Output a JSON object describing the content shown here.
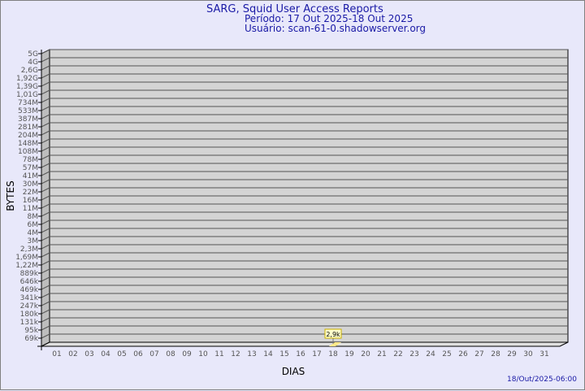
{
  "title": "SARG, Squid User Access Reports",
  "period": "Período: 17 Out 2025-18 Out 2025",
  "user": "Usuário: scan-61-0.shadowserver.org",
  "footer_timestamp": "18/Out/2025-06:00",
  "colors": {
    "title": "#1a1aa6",
    "plot_bg": "#d4d4d4",
    "bar": "#ffe98a",
    "background": "#e8e8fa"
  },
  "chart_data": {
    "type": "bar",
    "style": "3d",
    "xlabel": "DIAS",
    "ylabel": "BYTES",
    "categories": [
      "01",
      "02",
      "03",
      "04",
      "05",
      "06",
      "07",
      "08",
      "09",
      "10",
      "11",
      "12",
      "13",
      "14",
      "15",
      "16",
      "17",
      "18",
      "19",
      "20",
      "21",
      "22",
      "23",
      "24",
      "25",
      "26",
      "27",
      "28",
      "29",
      "30",
      "31"
    ],
    "y_scale": "log",
    "y_ticks": [
      "69k",
      "95k",
      "131k",
      "180k",
      "247k",
      "341k",
      "469k",
      "646k",
      "889k",
      "1,22M",
      "1,69M",
      "2,3M",
      "3M",
      "4M",
      "6M",
      "8M",
      "11M",
      "16M",
      "22M",
      "30M",
      "41M",
      "57M",
      "78M",
      "108M",
      "148M",
      "204M",
      "281M",
      "387M",
      "533M",
      "734M",
      "1,01G",
      "1,39G",
      "1,92G",
      "2,6G",
      "4G",
      "5G"
    ],
    "grid": true,
    "values": [
      {
        "category": "18",
        "value": 2900,
        "label": "2,9k"
      }
    ]
  }
}
